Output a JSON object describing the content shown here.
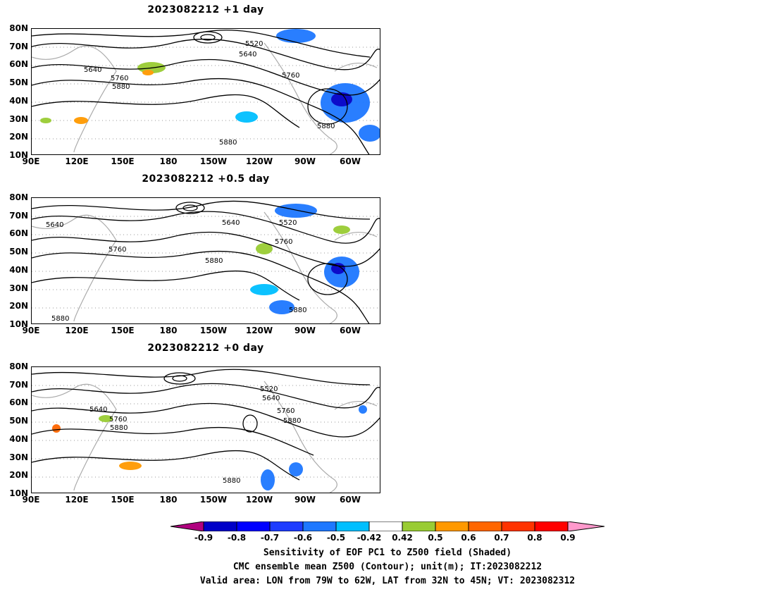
{
  "panels": [
    {
      "title": "2023082212  +1 day",
      "contour_labels": [
        "5520",
        "5640",
        "5640",
        "5760",
        "5760",
        "5880",
        "5880",
        "5880"
      ]
    },
    {
      "title": "2023082212  +0.5 day",
      "contour_labels": [
        "5640",
        "5640",
        "5520",
        "5760",
        "5760",
        "5880",
        "5880",
        "5880"
      ]
    },
    {
      "title": "2023082212  +0 day",
      "contour_labels": [
        "5520",
        "5640",
        "5640",
        "5760",
        "5760",
        "5880",
        "5880",
        "5880"
      ]
    }
  ],
  "lat_ticks": [
    "80N",
    "70N",
    "60N",
    "50N",
    "40N",
    "30N",
    "20N",
    "10N"
  ],
  "lon_ticks": [
    "90E",
    "120E",
    "150E",
    "180",
    "150W",
    "120W",
    "90W",
    "60W"
  ],
  "colorbar": {
    "labels": [
      "-0.9",
      "-0.8",
      "-0.7",
      "-0.6",
      "-0.5",
      "-0.42",
      "0.42",
      "0.5",
      "0.6",
      "0.7",
      "0.8",
      "0.9"
    ],
    "colors": [
      "#b0007f",
      "#0000c8",
      "#0000ff",
      "#1e3cff",
      "#1e78ff",
      "#00bfff",
      "#ffffff",
      "#99cc33",
      "#ff9900",
      "#ff6600",
      "#ff3300",
      "#ff0000",
      "#ff99cc"
    ]
  },
  "captions": [
    "Sensitivity of EOF PC1 to Z500 field (Shaded)",
    "CMC ensemble mean Z500 (Contour); unit(m); IT:2023082212",
    "Valid area: LON from 79W to 62W, LAT from 32N to 45N; VT: 2023082312"
  ]
}
